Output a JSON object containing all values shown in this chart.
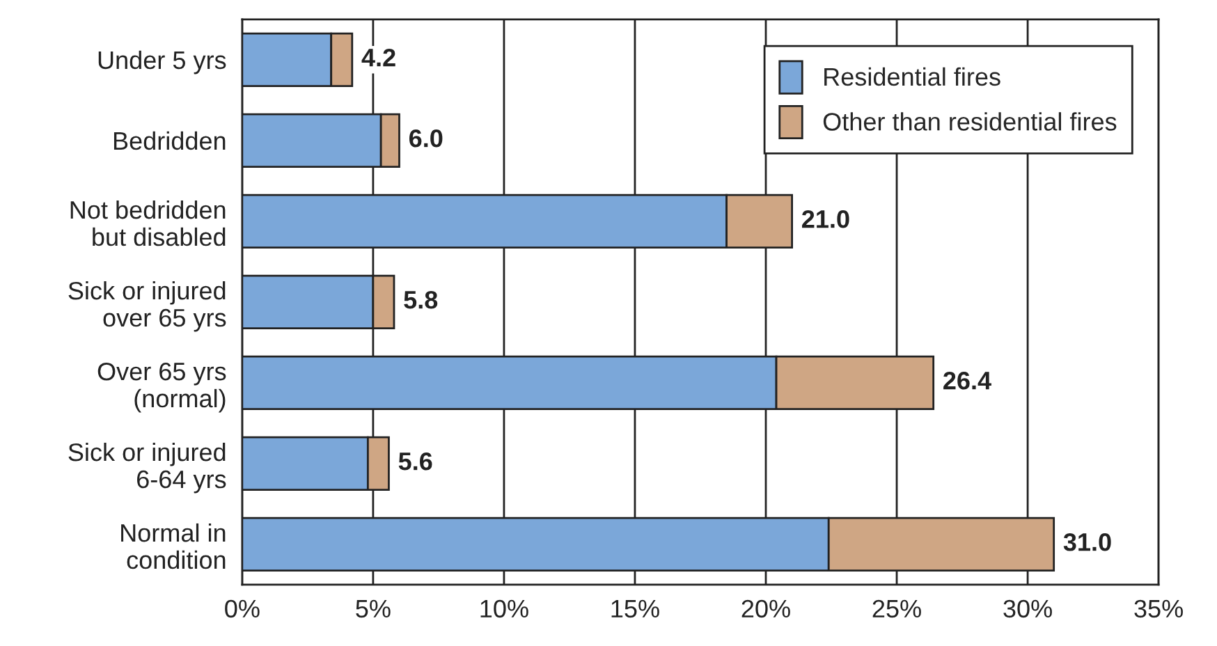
{
  "chart_data": {
    "type": "bar",
    "orientation": "horizontal",
    "stacked": true,
    "categories": [
      "Under 5 yrs",
      "Bedridden",
      "Not bedridden\nbut disabled",
      "Sick or injured\nover 65 yrs",
      "Over 65 yrs\n(normal)",
      "Sick or injured\n6-64 yrs",
      "Normal in\ncondition"
    ],
    "series": [
      {
        "name": "Residential fires",
        "color": "#7ba7d9",
        "values": [
          3.4,
          5.3,
          18.5,
          5.0,
          20.4,
          4.8,
          22.4
        ]
      },
      {
        "name": "Other than residential fires",
        "color": "#cfa684",
        "values": [
          0.8,
          0.7,
          2.5,
          0.8,
          6.0,
          0.8,
          8.6
        ]
      }
    ],
    "totals": [
      "4.2",
      "6.0",
      "21.0",
      "5.8",
      "26.4",
      "5.6",
      "31.0"
    ],
    "xlim": [
      0,
      35
    ],
    "xticks": [
      {
        "value": 0,
        "label": "0%"
      },
      {
        "value": 5,
        "label": "5%"
      },
      {
        "value": 10,
        "label": "10%"
      },
      {
        "value": 15,
        "label": "15%"
      },
      {
        "value": 20,
        "label": "20%"
      },
      {
        "value": 25,
        "label": "25%"
      },
      {
        "value": 30,
        "label": "30%"
      },
      {
        "value": 35,
        "label": "35%"
      }
    ],
    "grid": "x",
    "legend": "top right"
  }
}
